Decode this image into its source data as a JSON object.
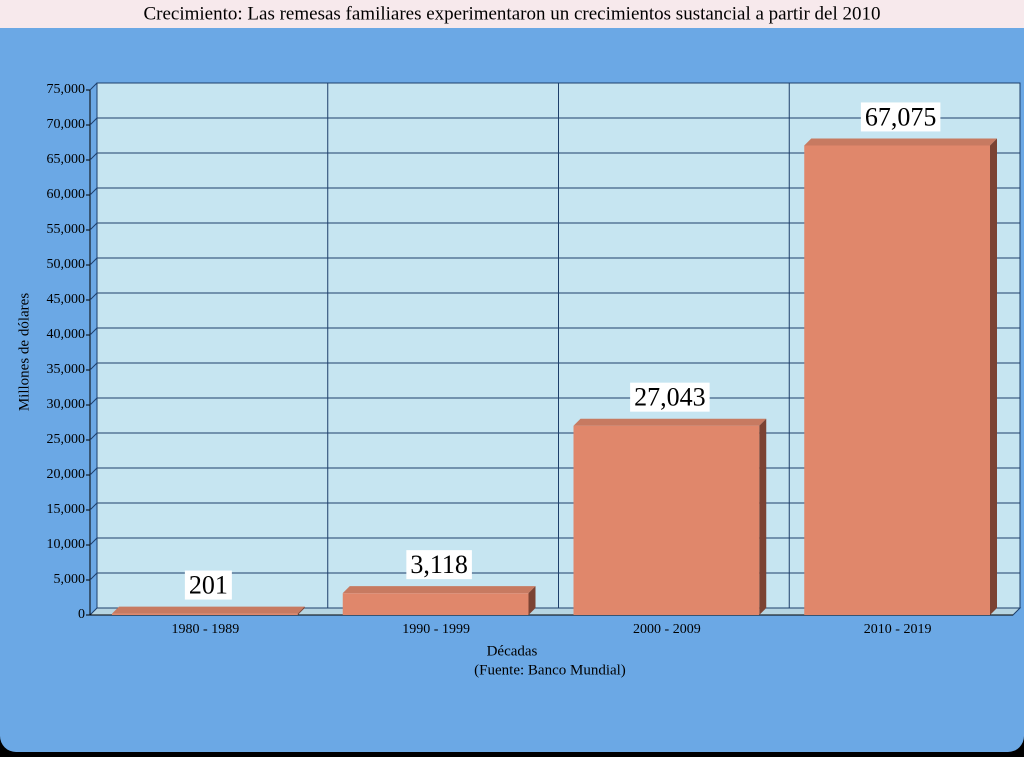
{
  "chart_data": {
    "type": "bar",
    "title": "Crecimiento: Las remesas familiares experimentaron un crecimientos sustancial a partir del 2010",
    "categories": [
      "1980 - 1989",
      "1990 - 1999",
      "2000 - 2009",
      "2010 - 2019"
    ],
    "values": [
      201,
      3118,
      27043,
      67075
    ],
    "value_labels": [
      "201",
      "3,118",
      "27,043",
      "67,075"
    ],
    "color": "#e0876b",
    "xlabel": "Décadas",
    "source": "(Fuente: Banco Mundial)",
    "ylabel": "Millones de dólares",
    "ylim": [
      0,
      75000
    ],
    "yticks": [
      0,
      {
        "value": 5000,
        "label": "5,000"
      },
      {
        "value": 10000,
        "label": "10,000"
      },
      {
        "value": 15000,
        "label": "15,000"
      },
      {
        "value": 20000,
        "label": "20,000"
      },
      {
        "value": 25000,
        "label": "25,000"
      },
      {
        "value": 30000,
        "label": "30,000"
      },
      {
        "value": 35000,
        "label": "35,000"
      },
      {
        "value": 40000,
        "label": "40,000"
      },
      {
        "value": 45000,
        "label": "45,000"
      },
      {
        "value": 50000,
        "label": "50,000"
      },
      {
        "value": 55000,
        "label": "55,000"
      },
      {
        "value": 60000,
        "label": "60,000"
      },
      {
        "value": 65000,
        "label": "65,000"
      },
      {
        "value": 70000,
        "label": "70,000"
      },
      {
        "value": 75000,
        "label": "75,000"
      }
    ],
    "grid": true
  }
}
